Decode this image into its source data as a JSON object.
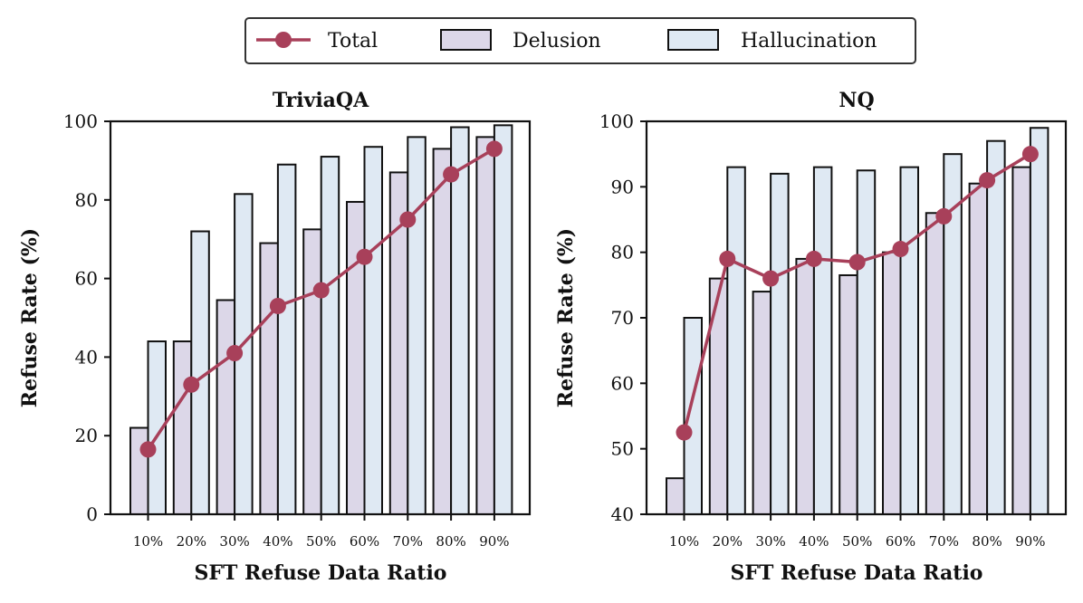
{
  "legend": {
    "total": "Total",
    "delusion": "Delusion",
    "hallucination": "Hallucination"
  },
  "colors": {
    "total": "#a8405a",
    "delusion": "#dcd7e8",
    "hallucination": "#dfe9f3",
    "edge": "#111111"
  },
  "chart_data": [
    {
      "type": "bar",
      "title": "TriviaQA",
      "xlabel": "SFT Refuse Data Ratio",
      "ylabel": "Refuse Rate (%)",
      "ylim": [
        0,
        100
      ],
      "yticks": [
        0,
        20,
        40,
        60,
        80,
        100
      ],
      "categories": [
        "10%",
        "20%",
        "30%",
        "40%",
        "50%",
        "60%",
        "70%",
        "80%",
        "90%"
      ],
      "series": [
        {
          "name": "Delusion",
          "kind": "bar",
          "values": [
            22,
            44,
            54.5,
            69,
            72.5,
            79.5,
            87,
            93,
            96
          ]
        },
        {
          "name": "Hallucination",
          "kind": "bar",
          "values": [
            44,
            72,
            81.5,
            89,
            91,
            93.5,
            96,
            98.5,
            99
          ]
        },
        {
          "name": "Total",
          "kind": "line",
          "values": [
            16.5,
            33,
            41,
            53,
            57,
            65.5,
            75,
            86.5,
            93
          ]
        }
      ]
    },
    {
      "type": "bar",
      "title": "NQ",
      "xlabel": "SFT Refuse Data Ratio",
      "ylabel": "Refuse Rate (%)",
      "ylim": [
        40,
        100
      ],
      "yticks": [
        40,
        50,
        60,
        70,
        80,
        90,
        100
      ],
      "categories": [
        "10%",
        "20%",
        "30%",
        "40%",
        "50%",
        "60%",
        "70%",
        "80%",
        "90%"
      ],
      "series": [
        {
          "name": "Delusion",
          "kind": "bar",
          "values": [
            45.5,
            76,
            74,
            79,
            76.5,
            80,
            86,
            90.5,
            93
          ]
        },
        {
          "name": "Hallucination",
          "kind": "bar",
          "values": [
            70,
            93,
            92,
            93,
            92.5,
            93,
            95,
            97,
            99
          ]
        },
        {
          "name": "Total",
          "kind": "line",
          "values": [
            52.5,
            79,
            76,
            79,
            78.5,
            80.5,
            85.5,
            91,
            95
          ]
        }
      ]
    }
  ]
}
